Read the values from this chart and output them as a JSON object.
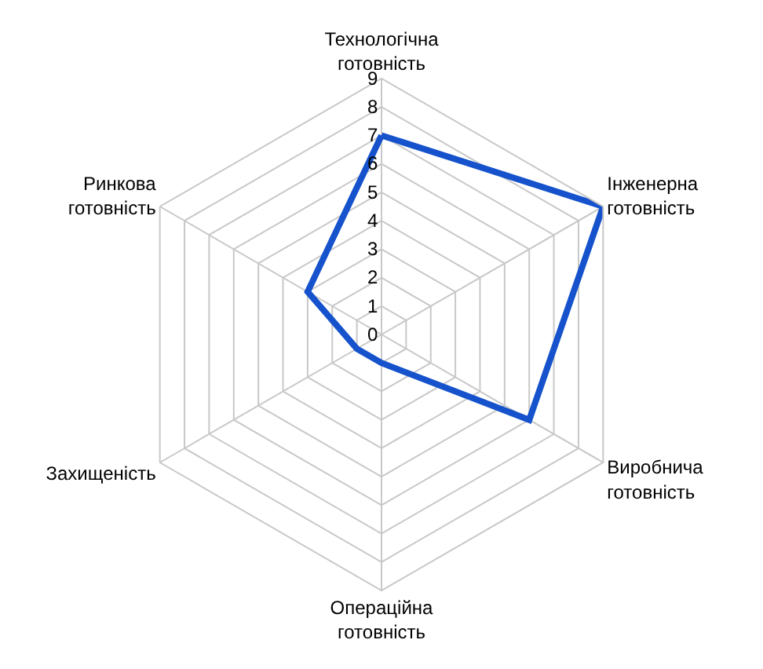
{
  "chart_data": {
    "type": "radar",
    "categories": [
      "Технологічна готовність",
      "Інженерна готовність",
      "Виробнича готовність",
      "Операційна готовність",
      "Захищеність",
      "Ринкова готовність"
    ],
    "series": [
      {
        "color": "#1552cc",
        "values": [
          7,
          9,
          6,
          1,
          1,
          3
        ]
      }
    ],
    "ylim": [
      0,
      9
    ],
    "yticks": [
      0,
      1,
      2,
      3,
      4,
      5,
      6,
      7,
      8,
      9
    ],
    "grid": true,
    "marker": "none",
    "line_style": "solid"
  }
}
